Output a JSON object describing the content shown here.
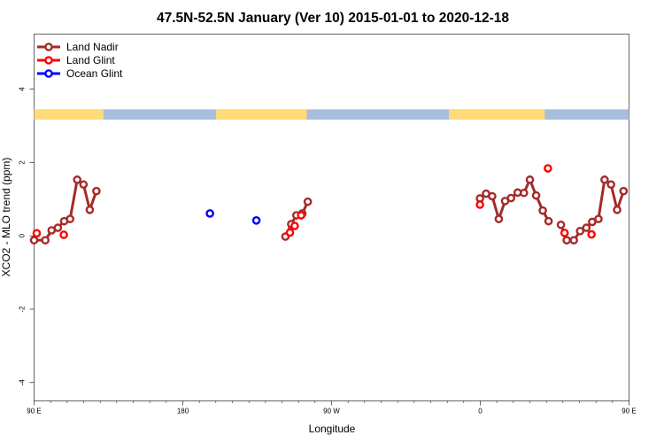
{
  "chart_data": {
    "type": "line",
    "title": "47.5N-52.5N January (Ver 10)   2015-01-01 to 2020-12-18",
    "xlabel": "Longitude",
    "ylabel": "XCO2 - MLO trend (ppm)",
    "xlim": [
      90,
      450
    ],
    "ylim": [
      -4.5,
      5.5
    ],
    "x_ticks": [
      {
        "value": 90,
        "label": "90 E"
      },
      {
        "value": 180,
        "label": "180"
      },
      {
        "value": 270,
        "label": "90 W"
      },
      {
        "value": 360,
        "label": "0"
      },
      {
        "value": 450,
        "label": "90 E"
      }
    ],
    "x_minor_ticks": [
      100,
      110,
      120,
      130,
      140,
      150,
      160,
      170,
      190,
      200,
      210,
      220,
      230,
      240,
      250,
      260,
      280,
      290,
      300,
      310,
      320,
      330,
      340,
      350,
      370,
      380,
      390,
      400,
      410,
      420,
      430,
      440
    ],
    "y_ticks": [
      {
        "value": -4,
        "label": "-4"
      },
      {
        "value": -2,
        "label": "-2"
      },
      {
        "value": 0,
        "label": "0"
      },
      {
        "value": 2,
        "label": "2"
      },
      {
        "value": 4,
        "label": "4"
      }
    ],
    "legend_position": "top-left",
    "land_ocean_band": {
      "y_range": [
        3.17,
        3.45
      ],
      "land_color": "#FFDA7A",
      "ocean_color": "#A7BEDD",
      "land_segments": [
        [
          90,
          132
        ],
        [
          200,
          255
        ],
        [
          341,
          399
        ]
      ]
    },
    "series": [
      {
        "name": "Land Nadir",
        "color": "#A52A2A",
        "line": true,
        "segments": [
          [
            {
              "x": 90.0,
              "y": -0.12
            },
            {
              "x": 96.8,
              "y": -0.12
            },
            {
              "x": 100.6,
              "y": 0.15
            },
            {
              "x": 104.4,
              "y": 0.22
            },
            {
              "x": 108.2,
              "y": 0.4
            },
            {
              "x": 111.8,
              "y": 0.46
            },
            {
              "x": 116.1,
              "y": 1.53
            },
            {
              "x": 119.9,
              "y": 1.4
            },
            {
              "x": 123.7,
              "y": 0.71
            },
            {
              "x": 127.7,
              "y": 1.22
            }
          ],
          [
            {
              "x": 242.1,
              "y": -0.02
            },
            {
              "x": 245.6,
              "y": 0.32
            },
            {
              "x": 248.7,
              "y": 0.56
            },
            {
              "x": 252.3,
              "y": 0.61
            },
            {
              "x": 255.6,
              "y": 0.93
            }
          ],
          [
            {
              "x": 359.8,
              "y": 1.02
            },
            {
              "x": 363.5,
              "y": 1.15
            },
            {
              "x": 367.2,
              "y": 1.08
            },
            {
              "x": 371.2,
              "y": 0.46
            },
            {
              "x": 375.0,
              "y": 0.95
            },
            {
              "x": 378.6,
              "y": 1.03
            },
            {
              "x": 382.6,
              "y": 1.18
            },
            {
              "x": 386.4,
              "y": 1.17
            },
            {
              "x": 390.0,
              "y": 1.53
            },
            {
              "x": 393.8,
              "y": 1.1
            },
            {
              "x": 397.8,
              "y": 0.69
            },
            {
              "x": 401.3,
              "y": 0.4
            }
          ],
          [
            {
              "x": 446.7,
              "y": 1.22
            },
            {
              "x": 442.8,
              "y": 0.71
            },
            {
              "x": 439.1,
              "y": 1.4
            },
            {
              "x": 435.2,
              "y": 1.53
            },
            {
              "x": 431.5,
              "y": 0.46
            },
            {
              "x": 427.7,
              "y": 0.38
            },
            {
              "x": 424.2,
              "y": 0.22
            },
            {
              "x": 420.4,
              "y": 0.13
            },
            {
              "x": 416.6,
              "y": -0.12
            },
            {
              "x": 412.3,
              "y": -0.12
            },
            {
              "x": 408.8,
              "y": 0.3
            }
          ]
        ]
      },
      {
        "name": "Land Glint",
        "color": "#FF0000",
        "line": false,
        "points": [
          {
            "x": 91.6,
            "y": 0.07
          },
          {
            "x": 108.0,
            "y": 0.03
          },
          {
            "x": 244.8,
            "y": 0.09
          },
          {
            "x": 247.7,
            "y": 0.27
          },
          {
            "x": 251.6,
            "y": 0.56
          },
          {
            "x": 359.8,
            "y": 0.85
          },
          {
            "x": 400.9,
            "y": 1.84
          },
          {
            "x": 411.0,
            "y": 0.08
          },
          {
            "x": 427.3,
            "y": 0.04
          }
        ]
      },
      {
        "name": "Ocean Glint",
        "color": "#0000FF",
        "line": false,
        "points": [
          {
            "x": 196.4,
            "y": 0.61
          },
          {
            "x": 224.5,
            "y": 0.42
          }
        ]
      }
    ]
  }
}
